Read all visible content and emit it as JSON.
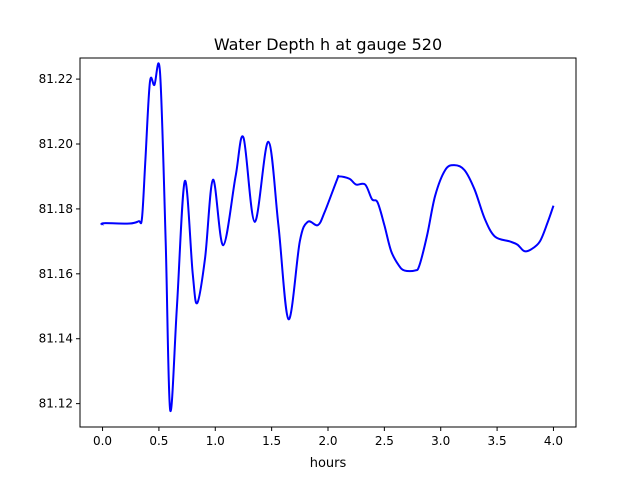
{
  "chart_data": {
    "type": "line",
    "title": "Water Depth h at gauge 520",
    "xlabel": "hours",
    "ylabel": "",
    "xlim": [
      -0.2,
      4.2
    ],
    "ylim": [
      81.1128,
      81.2265
    ],
    "xticks": [
      0.0,
      0.5,
      1.0,
      1.5,
      2.0,
      2.5,
      3.0,
      3.5,
      4.0
    ],
    "xtick_labels": [
      "0.0",
      "0.5",
      "1.0",
      "1.5",
      "2.0",
      "2.5",
      "3.0",
      "3.5",
      "4.0"
    ],
    "yticks": [
      81.12,
      81.14,
      81.16,
      81.18,
      81.2,
      81.22
    ],
    "ytick_labels": [
      "81.12",
      "81.14",
      "81.16",
      "81.18",
      "81.20",
      "81.22"
    ],
    "grid": false,
    "series": [
      {
        "name": "h",
        "color": "#0000ff",
        "x": [
          0.0,
          0.01,
          0.24,
          0.32,
          0.35,
          0.38,
          0.42,
          0.46,
          0.51,
          0.56,
          0.6,
          0.66,
          0.73,
          0.8,
          0.84,
          0.91,
          0.98,
          1.07,
          1.18,
          1.25,
          1.35,
          1.47,
          1.56,
          1.65,
          1.75,
          1.82,
          1.91,
          1.97,
          2.08,
          2.1,
          2.19,
          2.25,
          2.33,
          2.39,
          2.44,
          2.5,
          2.56,
          2.63,
          2.68,
          2.77,
          2.81,
          2.88,
          2.95,
          3.04,
          3.12,
          3.21,
          3.3,
          3.39,
          3.48,
          3.61,
          3.68,
          3.74,
          3.8,
          3.88,
          3.95,
          4.0
        ],
        "y": [
          81.175,
          81.1756,
          81.1755,
          81.1762,
          81.1772,
          81.195,
          81.219,
          81.2182,
          81.222,
          81.17,
          81.118,
          81.15,
          81.1886,
          81.16,
          81.151,
          81.165,
          81.189,
          81.1688,
          81.19,
          81.202,
          81.176,
          81.2007,
          81.175,
          81.146,
          81.17,
          81.176,
          81.175,
          81.179,
          81.189,
          81.19,
          81.1893,
          81.1875,
          81.1875,
          81.183,
          81.182,
          81.175,
          81.167,
          81.1625,
          81.161,
          81.161,
          81.1625,
          81.172,
          81.184,
          81.192,
          81.1935,
          81.192,
          81.186,
          81.177,
          81.1715,
          81.17,
          81.169,
          81.167,
          81.1675,
          81.17,
          81.176,
          81.181
        ]
      }
    ]
  }
}
